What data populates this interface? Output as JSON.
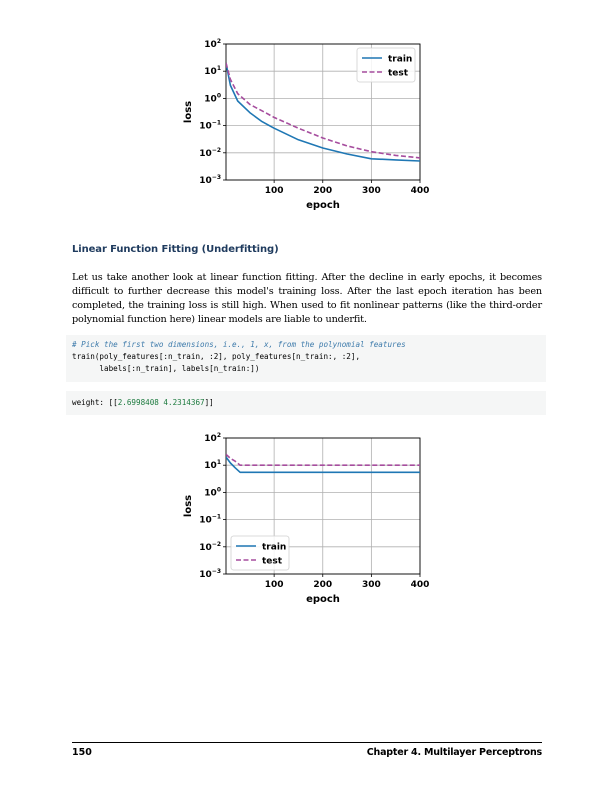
{
  "chart_data": [
    {
      "type": "line",
      "xlabel": "epoch",
      "ylabel": "loss",
      "xlim": [
        1,
        400
      ],
      "ylim": [
        0.001,
        100
      ],
      "yscale": "log",
      "xticks": [
        "100",
        "200",
        "300",
        "400"
      ],
      "yticks": [
        "10^2",
        "10^1",
        "10^0",
        "10^-1",
        "10^-2",
        "10^-3"
      ],
      "grid": true,
      "legend": "top-right",
      "colors": {
        "train": "#1f77b4",
        "test": "#a64d9e"
      },
      "series": [
        {
          "name": "train",
          "style": "solid",
          "x": [
            1,
            10,
            25,
            50,
            75,
            100,
            150,
            200,
            250,
            300,
            350,
            400
          ],
          "y": [
            20,
            3,
            0.8,
            0.3,
            0.14,
            0.08,
            0.03,
            0.015,
            0.009,
            0.006,
            0.0055,
            0.005
          ]
        },
        {
          "name": "test",
          "style": "dashed",
          "x": [
            1,
            10,
            25,
            50,
            75,
            100,
            150,
            200,
            250,
            300,
            350,
            400
          ],
          "y": [
            20,
            5,
            1.5,
            0.6,
            0.35,
            0.2,
            0.08,
            0.035,
            0.018,
            0.011,
            0.008,
            0.0065
          ]
        }
      ]
    },
    {
      "type": "line",
      "xlabel": "epoch",
      "ylabel": "loss",
      "xlim": [
        1,
        400
      ],
      "ylim": [
        0.001,
        100
      ],
      "yscale": "log",
      "xticks": [
        "100",
        "200",
        "300",
        "400"
      ],
      "yticks": [
        "10^2",
        "10^1",
        "10^0",
        "10^-1",
        "10^-2",
        "10^-3"
      ],
      "grid": true,
      "legend": "lower-left",
      "colors": {
        "train": "#1f77b4",
        "test": "#a64d9e"
      },
      "series": [
        {
          "name": "train",
          "style": "solid",
          "x": [
            1,
            10,
            20,
            30,
            100,
            200,
            300,
            400
          ],
          "y": [
            20,
            12,
            8,
            5.5,
            5.5,
            5.5,
            5.5,
            5.5
          ]
        },
        {
          "name": "test",
          "style": "dashed",
          "x": [
            1,
            10,
            20,
            30,
            100,
            200,
            300,
            400
          ],
          "y": [
            25,
            18,
            14,
            10,
            10,
            10,
            10,
            10
          ]
        }
      ]
    }
  ],
  "section": {
    "heading": "Linear Function Fitting (Underfitting)",
    "paragraph": "Let us take another look at linear function fitting. After the decline in early epochs, it becomes difficult to further decrease this model's training loss. After the last epoch iteration has been completed, the training loss is still high. When used to fit nonlinear patterns (like the third-order polynomial function here) linear models are liable to underfit."
  },
  "code": {
    "comment": "# Pick the first two dimensions, i.e., 1, x, from the polynomial features",
    "line1": "train(poly_features[:n_train, :2], poly_features[n_train:, :2],",
    "line2": "      labels[:n_train], labels[n_train:])",
    "output_prefix": "weight: [[",
    "output_values": "2.6998408 4.2314367",
    "output_suffix": "]]"
  },
  "footer": {
    "page_number": "150",
    "chapter": "Chapter 4.  Multilayer Perceptrons"
  }
}
